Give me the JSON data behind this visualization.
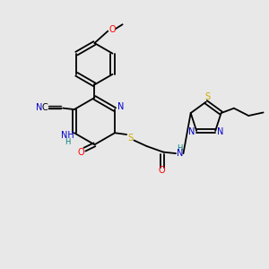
{
  "background_color": "#e8e8e8",
  "bond_color": "#000000",
  "atom_colors": {
    "N": "#0000cc",
    "O": "#ff0000",
    "S": "#ccaa00",
    "C": "#000000",
    "H": "#008080"
  }
}
